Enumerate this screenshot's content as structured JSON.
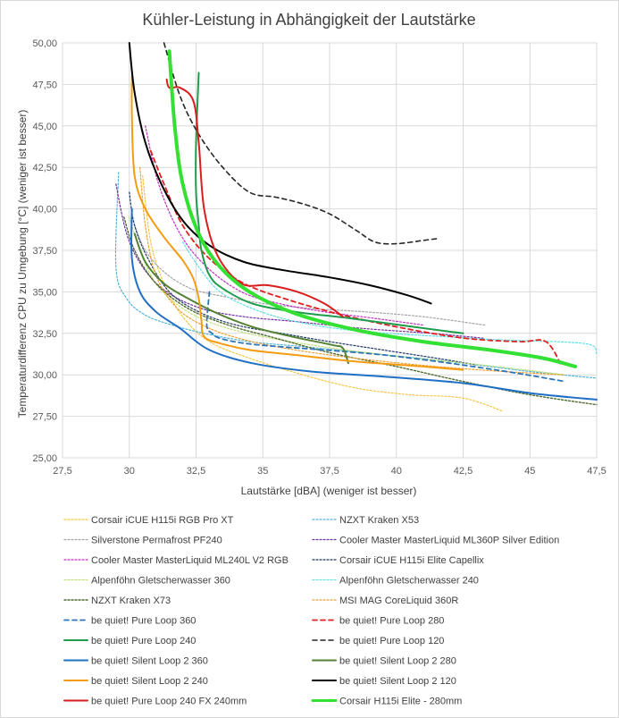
{
  "chart_data": {
    "type": "line",
    "title": "Kühler-Leistung in Abhängigkeit der Lautstärke",
    "xlabel": "Lautstärke [dBA]  (weniger ist besser)",
    "ylabel": "Temperaturdifferenz  CPU zu Umgebung [°C]  (weniger ist besser)",
    "xlim": [
      27.5,
      47.5
    ],
    "ylim": [
      25.0,
      50.0
    ],
    "x_ticks": [
      "27,5",
      "30",
      "32,5",
      "35",
      "37,5",
      "40",
      "42,5",
      "45",
      "47,5"
    ],
    "y_ticks": [
      "25,00",
      "27,50",
      "30,00",
      "32,50",
      "35,00",
      "37,50",
      "40,00",
      "42,50",
      "45,00",
      "47,50",
      "50,00"
    ],
    "grid": true,
    "legend_position": "bottom",
    "series": [
      {
        "name": "Corsair iCUE H115i RGB Pro XT",
        "color": "#f5c542",
        "dash": "dotted",
        "width": 1.2,
        "x": [
          30.5,
          30.8,
          31.3,
          32.0,
          33.0,
          34.5,
          36.5,
          38.5,
          40.5,
          42.5,
          44.0
        ],
        "y": [
          42.0,
          38.0,
          35.5,
          33.5,
          32.0,
          31.0,
          30.0,
          29.2,
          28.8,
          28.6,
          27.8
        ]
      },
      {
        "name": "NZXT Kraken X53",
        "color": "#4fb3d9",
        "dash": "dotted",
        "width": 1.2,
        "x": [
          29.6,
          29.5,
          29.9,
          30.6,
          31.6,
          32.8,
          34.5,
          36.5,
          39.0,
          42.0,
          45.0,
          47.5
        ],
        "y": [
          42.2,
          36.5,
          34.6,
          33.6,
          33.0,
          32.5,
          32.0,
          31.7,
          31.3,
          30.8,
          30.2,
          29.8
        ]
      },
      {
        "name": "Silverstone Permafrost PF240",
        "color": "#a6a6a6",
        "dash": "dotted",
        "width": 1.2,
        "x": [
          30.2,
          30.6,
          31.3,
          32.3,
          33.6,
          35.0,
          36.8,
          38.8,
          41.0,
          43.3
        ],
        "y": [
          39.0,
          37.5,
          36.2,
          35.2,
          34.7,
          34.3,
          34.0,
          33.8,
          33.5,
          33.0
        ]
      },
      {
        "name": "Cooler Master MasterLiquid ML360P Silver Edition",
        "color": "#7030a0",
        "dash": "dotted",
        "width": 1.2,
        "x": [
          29.5,
          29.9,
          30.5,
          31.4,
          32.7,
          34.3,
          36.3,
          38.7,
          41.3,
          43.3
        ],
        "y": [
          41.5,
          38.5,
          36.5,
          35.0,
          34.0,
          33.5,
          33.2,
          32.8,
          32.5,
          32.2
        ]
      },
      {
        "name": "Cooler Master MasterLiquid ML240L V2 RGB",
        "color": "#c030c0",
        "dash": "dotted",
        "width": 1.2,
        "x": [
          30.6,
          31.1,
          31.9,
          32.9,
          34.2,
          35.6,
          37.3,
          39.2,
          41.0
        ],
        "y": [
          45.0,
          41.5,
          38.5,
          36.5,
          35.0,
          34.3,
          33.8,
          33.4,
          33.0
        ]
      },
      {
        "name": "Corsair iCUE H115i Elite Capellix",
        "color": "#203864",
        "dash": "dotted",
        "width": 1.2,
        "x": [
          30.0,
          30.2,
          30.7,
          31.5,
          32.6,
          34.0,
          35.7,
          37.5,
          39.5,
          41.5,
          43.0
        ],
        "y": [
          41.0,
          39.0,
          37.0,
          35.0,
          33.8,
          33.0,
          32.5,
          32.0,
          31.5,
          31.0,
          30.6
        ]
      },
      {
        "name": "Alpenföhn Gletscherwasser 360",
        "color": "#bfe07a",
        "dash": "dotted",
        "width": 1.2,
        "x": [
          30.0,
          30.4,
          31.0,
          32.0,
          33.3,
          35.0,
          37.2,
          39.6,
          42.0,
          44.3,
          46.3
        ],
        "y": [
          39.5,
          37.5,
          35.5,
          34.0,
          33.0,
          32.3,
          31.7,
          31.2,
          30.8,
          30.4,
          30.0
        ]
      },
      {
        "name": "Alpenföhn Gletscherwasser 240",
        "color": "#5ce1e6",
        "dash": "dotted",
        "width": 1.2,
        "x": [
          32.0,
          32.6,
          33.4,
          34.6,
          36.0,
          37.7,
          39.7,
          41.8,
          44.0,
          46.0,
          47.3,
          47.5
        ],
        "y": [
          38.0,
          36.5,
          35.0,
          34.0,
          33.3,
          32.8,
          32.5,
          32.3,
          32.1,
          32.0,
          31.8,
          31.2
        ]
      },
      {
        "name": "NZXT Kraken X73",
        "color": "#4e6b2f",
        "dash": "dotted",
        "width": 1.4,
        "x": [
          29.8,
          30.2,
          31.0,
          32.2,
          33.7,
          35.5,
          37.6,
          40.0,
          42.5,
          45.0,
          47.5
        ],
        "y": [
          39.5,
          37.5,
          35.5,
          34.0,
          33.0,
          32.2,
          31.3,
          30.5,
          29.6,
          28.8,
          28.2
        ]
      },
      {
        "name": "MSI MAG CoreLiquid 360R",
        "color": "#f0a030",
        "dash": "dotted",
        "width": 1.2,
        "x": [
          30.4,
          30.6,
          31.0,
          31.8,
          33.0,
          34.6,
          36.6,
          39.0,
          41.5,
          44.0,
          46.3
        ],
        "y": [
          42.5,
          39.0,
          36.0,
          34.0,
          32.8,
          32.0,
          31.4,
          30.9,
          30.5,
          30.2,
          30.0
        ]
      },
      {
        "name": "be quiet! Pure Loop 360",
        "color": "#2e75b6",
        "dash": "dashed",
        "width": 1.8,
        "x": [
          33.0,
          32.9,
          33.1,
          33.4,
          34.3,
          35.6,
          37.3,
          39.5,
          42.0,
          44.5,
          46.3
        ],
        "y": [
          35.0,
          33.0,
          32.5,
          32.2,
          31.9,
          31.7,
          31.5,
          31.2,
          30.7,
          30.1,
          29.6
        ]
      },
      {
        "name": "be quiet! Pure Loop 280",
        "color": "#e02020",
        "dash": "dashed",
        "width": 1.8,
        "x": [
          30.8,
          31.3,
          32.0,
          33.0,
          34.3,
          36.0,
          38.0,
          40.3,
          42.6,
          44.6,
          45.6,
          46.2
        ],
        "y": [
          43.5,
          41.5,
          39.0,
          37.0,
          35.5,
          34.5,
          33.6,
          32.8,
          32.2,
          32.0,
          32.0,
          30.5
        ]
      },
      {
        "name": "be quiet! Pure Loop 240",
        "color": "#1e9c4c",
        "dash": "solid",
        "width": 2.0,
        "x": [
          32.6,
          32.5,
          32.5,
          32.6,
          32.7,
          33.0,
          33.5,
          34.6,
          36.2,
          38.3,
          40.6,
          42.5
        ],
        "y": [
          48.2,
          44.0,
          41.0,
          39.0,
          37.5,
          36.0,
          35.2,
          34.3,
          33.8,
          33.4,
          32.9,
          32.5
        ]
      },
      {
        "name": "be quiet! Pure Loop 120",
        "color": "#262626",
        "dash": "dashed",
        "width": 1.6,
        "x": [
          31.3,
          31.9,
          32.6,
          33.5,
          34.5,
          35.5,
          36.5,
          37.5,
          38.5,
          39.2,
          40.0,
          41.0,
          41.5
        ],
        "y": [
          50.0,
          46.8,
          44.5,
          42.5,
          41.0,
          40.7,
          40.3,
          39.7,
          38.7,
          38.0,
          37.9,
          38.1,
          38.2
        ]
      },
      {
        "name": "be quiet! Silent Loop 2 360",
        "color": "#1f6fc5",
        "dash": "solid",
        "width": 2.0,
        "x": [
          30.1,
          30.1,
          30.4,
          31.0,
          31.9,
          33.0,
          34.6,
          36.8,
          39.5,
          42.5,
          45.0,
          47.5
        ],
        "y": [
          40.0,
          37.0,
          35.0,
          33.8,
          32.8,
          31.5,
          30.7,
          30.2,
          29.9,
          29.5,
          28.9,
          28.5
        ]
      },
      {
        "name": "be quiet! Silent Loop 2 280",
        "color": "#548235",
        "dash": "solid",
        "width": 2.0,
        "x": [
          30.2,
          30.6,
          31.3,
          32.2,
          33.3,
          34.6,
          36.1,
          37.6,
          38.0,
          38.2
        ],
        "y": [
          38.5,
          36.8,
          35.5,
          34.6,
          33.7,
          32.9,
          32.3,
          31.8,
          31.6,
          30.7
        ]
      },
      {
        "name": "be quiet! Silent Loop 2 240",
        "color": "#f39c12",
        "dash": "solid",
        "width": 2.0,
        "x": [
          30.1,
          30.1,
          30.2,
          30.6,
          31.3,
          32.0,
          32.4,
          32.6,
          32.7,
          32.8,
          33.4,
          34.5,
          36.2,
          38.5,
          41.0,
          42.5
        ],
        "y": [
          48.0,
          45.5,
          42.0,
          40.0,
          38.3,
          36.9,
          35.8,
          34.6,
          33.3,
          32.3,
          31.9,
          31.5,
          31.2,
          30.8,
          30.5,
          30.3
        ]
      },
      {
        "name": "be quiet! Silent Loop 2 120",
        "color": "#000000",
        "dash": "solid",
        "width": 2.0,
        "x": [
          30.0,
          30.2,
          30.6,
          31.2,
          32.0,
          33.0,
          34.3,
          35.8,
          37.4,
          39.0,
          40.4,
          41.3
        ],
        "y": [
          50.0,
          47.0,
          44.0,
          41.5,
          39.3,
          37.8,
          36.8,
          36.3,
          35.9,
          35.4,
          34.8,
          34.3
        ]
      },
      {
        "name": "be quiet! Pure Loop 240 FX 240mm",
        "color": "#d91e1e",
        "dash": "solid",
        "width": 2.0,
        "x": [
          31.4,
          31.5,
          31.9,
          32.4,
          32.6,
          32.8,
          33.3,
          34.2,
          35.2,
          36.3,
          37.3,
          38.0
        ],
        "y": [
          47.8,
          47.3,
          47.3,
          46.5,
          44.0,
          40.0,
          37.2,
          35.5,
          35.4,
          35.0,
          34.3,
          33.5
        ]
      },
      {
        "name": "Corsair H115i Elite - 280mm",
        "color": "#33e033",
        "dash": "solid",
        "width": 4.0,
        "x": [
          31.5,
          31.7,
          32.0,
          32.6,
          33.4,
          34.5,
          36.2,
          38.5,
          41.0,
          43.5,
          45.5,
          46.7
        ],
        "y": [
          49.5,
          45.0,
          41.5,
          38.5,
          36.5,
          35.0,
          33.7,
          32.7,
          32.0,
          31.5,
          31.0,
          30.5
        ]
      }
    ]
  }
}
